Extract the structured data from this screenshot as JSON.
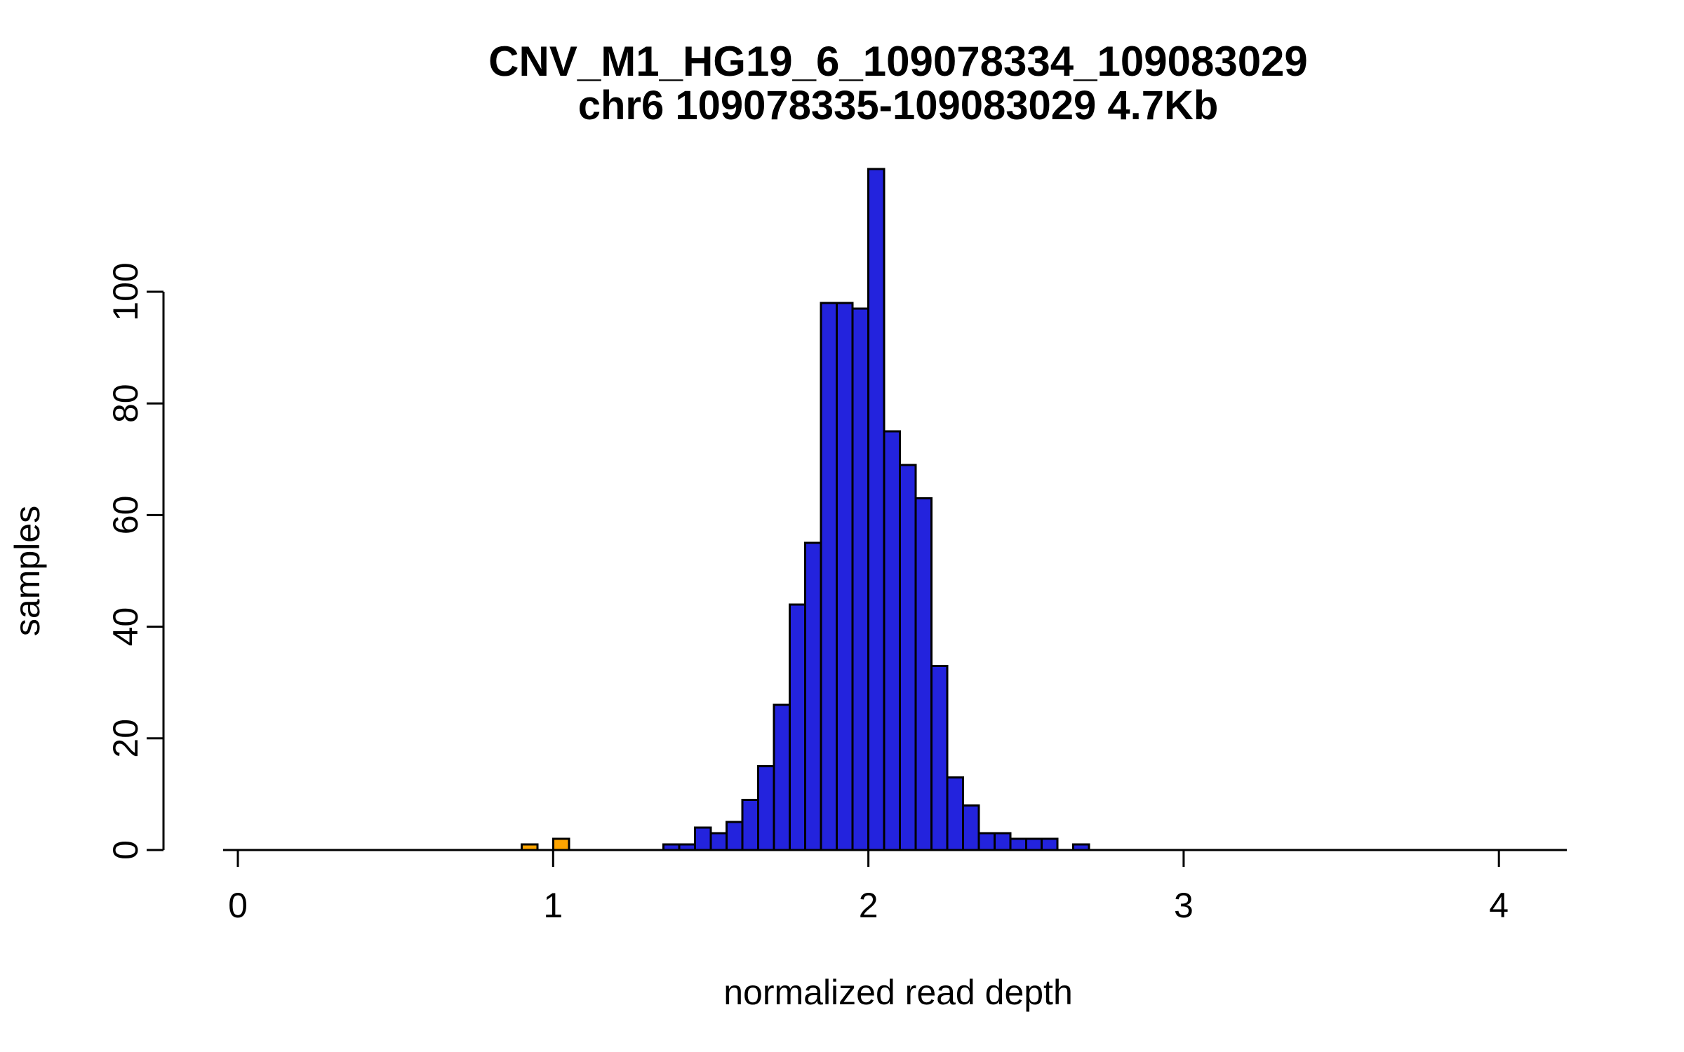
{
  "page": {
    "background": "#ffffff"
  },
  "chart_data": {
    "type": "bar",
    "subtype": "histogram",
    "title": "CNV_M1_HG19_6_109078334_109083029",
    "subtitle": "chr6 109078335-109083029 4.7Kb",
    "xlabel": "normalized read depth",
    "ylabel": "samples",
    "xlim": [
      0,
      4.2
    ],
    "ylim": [
      0,
      122
    ],
    "x_ticks": [
      0,
      1,
      2,
      3,
      4
    ],
    "y_ticks": [
      0,
      20,
      40,
      60,
      80,
      100
    ],
    "bin_width": 0.05,
    "grid": false,
    "legend": "none",
    "colors": {
      "bar_normal": "#2323dd",
      "bar_outlier": "#ffa500",
      "bar_border": "#000000",
      "axis": "#000000",
      "text": "#000000"
    },
    "bars": [
      {
        "x": 0.9,
        "count": 1,
        "color": "bar_outlier"
      },
      {
        "x": 1.0,
        "count": 2,
        "color": "bar_outlier"
      },
      {
        "x": 1.35,
        "count": 1,
        "color": "bar_normal"
      },
      {
        "x": 1.4,
        "count": 1,
        "color": "bar_normal"
      },
      {
        "x": 1.45,
        "count": 4,
        "color": "bar_normal"
      },
      {
        "x": 1.5,
        "count": 3,
        "color": "bar_normal"
      },
      {
        "x": 1.55,
        "count": 5,
        "color": "bar_normal"
      },
      {
        "x": 1.6,
        "count": 9,
        "color": "bar_normal"
      },
      {
        "x": 1.65,
        "count": 15,
        "color": "bar_normal"
      },
      {
        "x": 1.7,
        "count": 26,
        "color": "bar_normal"
      },
      {
        "x": 1.75,
        "count": 44,
        "color": "bar_normal"
      },
      {
        "x": 1.8,
        "count": 55,
        "color": "bar_normal"
      },
      {
        "x": 1.85,
        "count": 98,
        "color": "bar_normal"
      },
      {
        "x": 1.9,
        "count": 98,
        "color": "bar_normal"
      },
      {
        "x": 1.95,
        "count": 97,
        "color": "bar_normal"
      },
      {
        "x": 2.0,
        "count": 122,
        "color": "bar_normal"
      },
      {
        "x": 2.05,
        "count": 75,
        "color": "bar_normal"
      },
      {
        "x": 2.1,
        "count": 69,
        "color": "bar_normal"
      },
      {
        "x": 2.15,
        "count": 63,
        "color": "bar_normal"
      },
      {
        "x": 2.2,
        "count": 33,
        "color": "bar_normal"
      },
      {
        "x": 2.25,
        "count": 13,
        "color": "bar_normal"
      },
      {
        "x": 2.3,
        "count": 8,
        "color": "bar_normal"
      },
      {
        "x": 2.35,
        "count": 3,
        "color": "bar_normal"
      },
      {
        "x": 2.4,
        "count": 3,
        "color": "bar_normal"
      },
      {
        "x": 2.45,
        "count": 2,
        "color": "bar_normal"
      },
      {
        "x": 2.5,
        "count": 2,
        "color": "bar_normal"
      },
      {
        "x": 2.55,
        "count": 2,
        "color": "bar_normal"
      },
      {
        "x": 2.65,
        "count": 1,
        "color": "bar_normal"
      }
    ]
  }
}
